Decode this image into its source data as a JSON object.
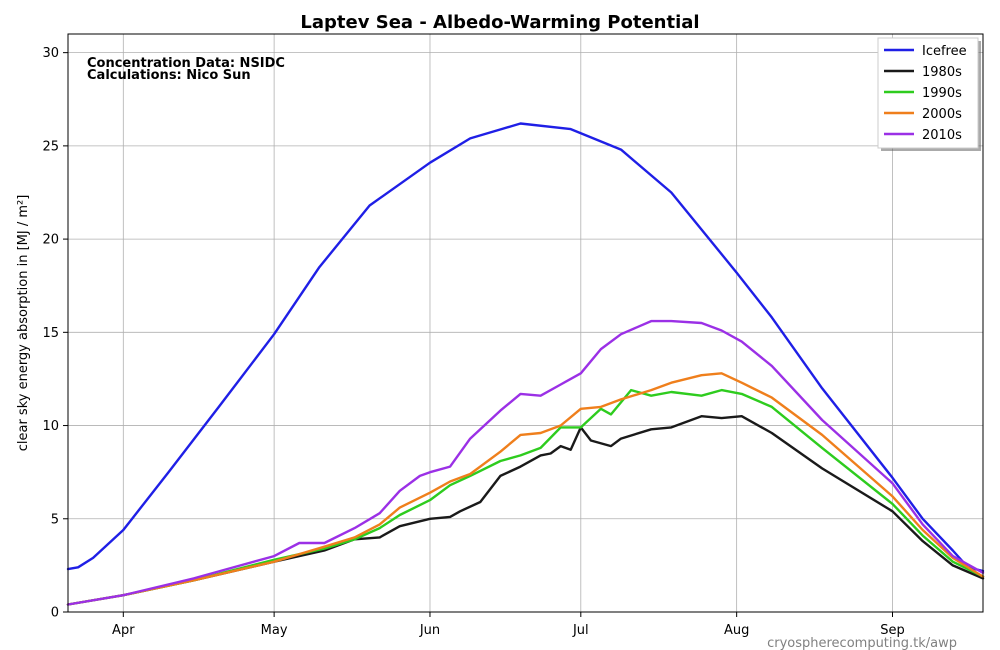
{
  "chart_data": {
    "type": "line",
    "title": "Laptev Sea - Albedo-Warming Potential",
    "ylabel": "clear sky energy absorption in  [MJ / m²]",
    "ylim": [
      0,
      31
    ],
    "xlim": [
      80,
      262
    ],
    "yticks": [
      0,
      5,
      10,
      15,
      20,
      25,
      30
    ],
    "xticks": [
      {
        "day": 91,
        "label": "Apr"
      },
      {
        "day": 121,
        "label": "May"
      },
      {
        "day": 152,
        "label": "Jun"
      },
      {
        "day": 182,
        "label": "Jul"
      },
      {
        "day": 213,
        "label": "Aug"
      },
      {
        "day": 244,
        "label": "Sep"
      }
    ],
    "grid": true,
    "legend_position": "top-right",
    "annotations": [
      "Concentration Data: NSIDC",
      "Calculations: Nico Sun"
    ],
    "source": "cryospherecomputing.tk/awp",
    "series": [
      {
        "name": "Icefree",
        "color": "#1f1fe6",
        "x": [
          80,
          82,
          85,
          91,
          100,
          110,
          121,
          130,
          140,
          152,
          160,
          170,
          180,
          190,
          200,
          213,
          220,
          230,
          244,
          250,
          256,
          259,
          262
        ],
        "y": [
          2.3,
          2.4,
          2.9,
          4.4,
          7.5,
          11.0,
          14.9,
          18.5,
          21.8,
          24.1,
          25.4,
          26.2,
          25.9,
          24.8,
          22.5,
          18.2,
          15.8,
          12.0,
          7.2,
          5.0,
          3.3,
          2.4,
          2.2
        ]
      },
      {
        "name": "1980s",
        "color": "#1a1a1a",
        "x": [
          80,
          91,
          105,
          121,
          131,
          137,
          142,
          146,
          152,
          156,
          158,
          162,
          166,
          170,
          174,
          176,
          178,
          180,
          182,
          184,
          188,
          190,
          196,
          200,
          206,
          210,
          214,
          220,
          230,
          244,
          250,
          256,
          262
        ],
        "y": [
          0.4,
          0.9,
          1.7,
          2.7,
          3.3,
          3.9,
          4.0,
          4.6,
          5.0,
          5.1,
          5.4,
          5.9,
          7.3,
          7.8,
          8.4,
          8.5,
          8.9,
          8.7,
          9.9,
          9.2,
          8.9,
          9.3,
          9.8,
          9.9,
          10.5,
          10.4,
          10.5,
          9.6,
          7.7,
          5.4,
          3.8,
          2.5,
          1.8
        ]
      },
      {
        "name": "1990s",
        "color": "#2ecc1e",
        "x": [
          80,
          91,
          105,
          121,
          131,
          137,
          142,
          146,
          152,
          156,
          160,
          166,
          170,
          174,
          178,
          182,
          186,
          188,
          192,
          196,
          200,
          206,
          210,
          214,
          220,
          230,
          244,
          250,
          256,
          262
        ],
        "y": [
          0.4,
          0.9,
          1.7,
          2.8,
          3.4,
          3.9,
          4.5,
          5.2,
          6.0,
          6.8,
          7.3,
          8.1,
          8.4,
          8.8,
          9.9,
          9.9,
          10.9,
          10.6,
          11.9,
          11.6,
          11.8,
          11.6,
          11.9,
          11.7,
          11.0,
          8.8,
          5.8,
          4.1,
          2.7,
          1.9
        ]
      },
      {
        "name": "2000s",
        "color": "#ef7f1c",
        "x": [
          80,
          91,
          105,
          121,
          131,
          137,
          142,
          146,
          152,
          156,
          160,
          166,
          170,
          174,
          178,
          182,
          186,
          190,
          196,
          200,
          206,
          210,
          214,
          220,
          230,
          244,
          250,
          256,
          262
        ],
        "y": [
          0.4,
          0.9,
          1.7,
          2.7,
          3.5,
          4.0,
          4.7,
          5.6,
          6.4,
          7.0,
          7.4,
          8.6,
          9.5,
          9.6,
          10.0,
          10.9,
          11.0,
          11.4,
          11.9,
          12.3,
          12.7,
          12.8,
          12.3,
          11.5,
          9.5,
          6.2,
          4.4,
          2.9,
          1.9
        ]
      },
      {
        "name": "2010s",
        "color": "#9b30e6",
        "x": [
          80,
          91,
          105,
          121,
          126,
          131,
          137,
          142,
          146,
          150,
          152,
          156,
          160,
          166,
          170,
          174,
          178,
          182,
          186,
          190,
          196,
          200,
          206,
          210,
          214,
          220,
          230,
          244,
          250,
          256,
          262
        ],
        "y": [
          0.4,
          0.9,
          1.8,
          3.0,
          3.7,
          3.7,
          4.5,
          5.3,
          6.5,
          7.3,
          7.5,
          7.8,
          9.3,
          10.8,
          11.7,
          11.6,
          12.2,
          12.8,
          14.1,
          14.9,
          15.6,
          15.6,
          15.5,
          15.1,
          14.5,
          13.2,
          10.3,
          6.9,
          4.7,
          3.0,
          2.1
        ]
      }
    ]
  }
}
